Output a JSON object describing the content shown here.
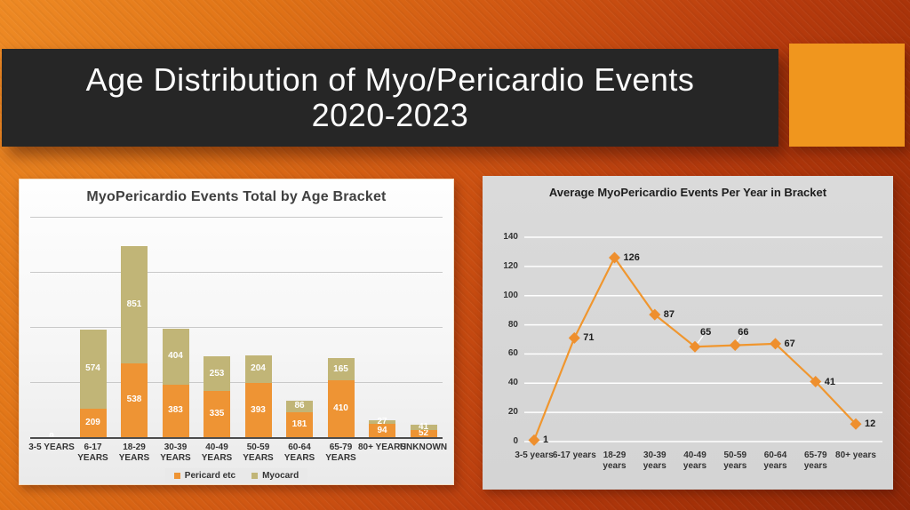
{
  "slide": {
    "title_line1": "Age Distribution of Myo/Pericardio Events",
    "title_line2": "2020-2023"
  },
  "colors": {
    "background_orange": "#ee8a24",
    "background_dark_red": "#8e2607",
    "banner_bg": "#262626",
    "accent_square": "#f0961e",
    "pericard_orange": "#ee9434",
    "myocard_olive": "#c1b577",
    "line_orange": "#f0962e",
    "gridline_left": "#c9c9c9",
    "gridline_right": "#ffffff"
  },
  "chart_data": [
    {
      "type": "bar",
      "stacked": true,
      "title": "MyoPericardio Events Total by Age Bracket",
      "categories": [
        "3-5 YEARS",
        "6-17 YEARS",
        "18-29 YEARS",
        "30-39 YEARS",
        "40-49 YEARS",
        "50-59 YEARS",
        "60-64 YEARS",
        "65-79 YEARS",
        "80+ YEARS",
        "UNKNOWN"
      ],
      "category_label_lines": [
        [
          "3-5 YEARS"
        ],
        [
          "6-17",
          "YEARS"
        ],
        [
          "18-29",
          "YEARS"
        ],
        [
          "30-39",
          "YEARS"
        ],
        [
          "40-49",
          "YEARS"
        ],
        [
          "50-59",
          "YEARS"
        ],
        [
          "60-64",
          "YEARS"
        ],
        [
          "65-79",
          "YEARS"
        ],
        [
          "80+ YEARS"
        ],
        [
          "UNKNOWN"
        ]
      ],
      "series": [
        {
          "name": "Pericard etc",
          "color": "#ee9434",
          "values": [
            2,
            209,
            538,
            383,
            335,
            393,
            181,
            410,
            94,
            52
          ]
        },
        {
          "name": "Myocard",
          "color": "#c1b577",
          "values": [
            0,
            574,
            851,
            404,
            253,
            204,
            86,
            165,
            27,
            41
          ]
        }
      ],
      "ylim": [
        0,
        1600
      ],
      "gridline_interval": 400,
      "y_axis_labels_visible": false,
      "grid": true,
      "legend_position": "bottom",
      "data_labels": true,
      "data_label_color": "#ffffff"
    },
    {
      "type": "line",
      "title": "Average MyoPericardio Events Per Year in Bracket",
      "categories": [
        "3-5 years",
        "6-17 years",
        "18-29 years",
        "30-39 years",
        "40-49 years",
        "50-59 years",
        "60-64 years",
        "65-79 years",
        "80+ years"
      ],
      "category_label_lines": [
        [
          "3-5 years"
        ],
        [
          "6-17 years"
        ],
        [
          "18-29",
          "years"
        ],
        [
          "30-39",
          "years"
        ],
        [
          "40-49",
          "years"
        ],
        [
          "50-59",
          "years"
        ],
        [
          "60-64",
          "years"
        ],
        [
          "65-79",
          "years"
        ],
        [
          "80+ years"
        ]
      ],
      "values": [
        1,
        71,
        126,
        87,
        65,
        66,
        67,
        41,
        12
      ],
      "data_labels": [
        "1",
        "71",
        "126",
        "87",
        "65",
        "66",
        "67",
        "41",
        "12"
      ],
      "ylim": [
        0,
        140
      ],
      "yticks": [
        "0",
        "20",
        "40",
        "60",
        "80",
        "100",
        "120",
        "140"
      ],
      "grid": true,
      "marker": "diamond",
      "legend_position": "none"
    }
  ]
}
